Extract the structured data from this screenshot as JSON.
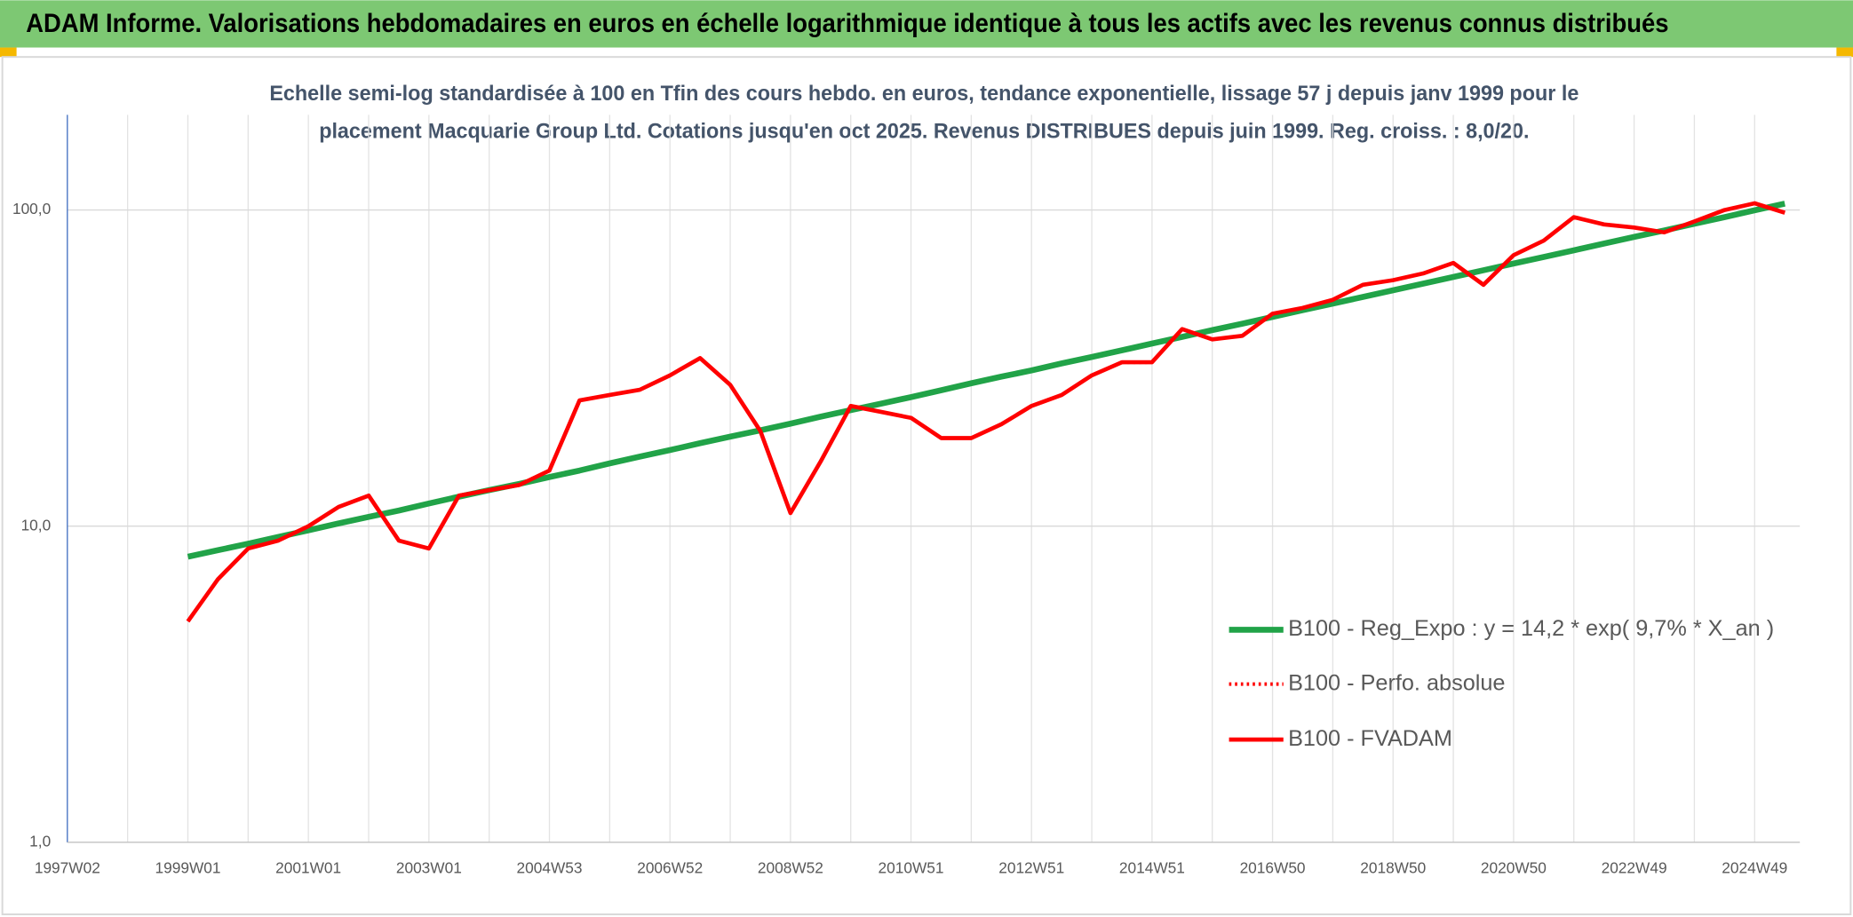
{
  "chart_data": {
    "type": "line",
    "title": "ADAM Informe. Valorisations hebdomadaires en euros en échelle logarithmique identique à tous les actifs avec les revenus connus distribués",
    "subtitle": [
      "Echelle semi-log standardisée à 100 en Tfin des cours hebdo. en euros, tendance exponentielle, lissage 57 j depuis janv 1999 pour le",
      "placement Macquarie Group Ltd. Cotations jusqu'en oct 2025. Revenus DISTRIBUES depuis juin 1999. Reg. croiss. : 8,0/20."
    ],
    "categories": [
      "1997W02",
      null,
      null,
      null,
      "1999W01",
      null,
      null,
      null,
      "2001W01",
      null,
      null,
      null,
      "2003W01",
      null,
      null,
      null,
      "2004W53",
      null,
      null,
      null,
      "2006W52",
      null,
      null,
      null,
      "2008W52",
      null,
      null,
      null,
      "2010W51",
      null,
      null,
      null,
      "2012W51",
      null,
      null,
      null,
      "2014W51",
      null,
      null,
      null,
      "2016W50",
      null,
      null,
      null,
      "2018W50",
      null,
      null,
      null,
      "2020W50",
      null,
      null,
      null,
      "2022W49",
      null,
      null,
      null,
      "2024W49",
      null
    ],
    "log_scale": true,
    "ylim": [
      1,
      200
    ],
    "yticks": [
      {
        "value": 1,
        "label": "1,0"
      },
      {
        "value": 10,
        "label": "10,0"
      },
      {
        "value": 100,
        "label": "100,0"
      }
    ],
    "grid": true,
    "legend": "right",
    "series": [
      {
        "name": "B100 - Reg_Expo : y = 14,2 * exp( 9,7% *  X_an )",
        "color": "#21a348",
        "style": "solid",
        "values": [
          null,
          null,
          null,
          null,
          8.0,
          8.4,
          8.8,
          9.25,
          9.7,
          10.2,
          10.7,
          11.2,
          11.8,
          12.4,
          13.0,
          13.6,
          14.3,
          15.0,
          15.8,
          16.6,
          17.4,
          18.3,
          19.2,
          20.1,
          21.1,
          22.2,
          23.3,
          24.4,
          25.6,
          26.9,
          28.3,
          29.7,
          31.1,
          32.7,
          34.3,
          36.0,
          37.8,
          39.7,
          41.7,
          43.7,
          45.9,
          48.2,
          50.6,
          53.1,
          55.7,
          58.5,
          61.4,
          64.5,
          67.7,
          71.0,
          74.6,
          78.3,
          82.2,
          86.2,
          90.5,
          95.0,
          99.8,
          104.7
        ]
      },
      {
        "name": "B100 - Perfo. absolue",
        "color": "#ff0000",
        "style": "dotted",
        "values": [
          null,
          null,
          null,
          null,
          5.0,
          6.8,
          8.5,
          9.0,
          10.0,
          11.5,
          12.5,
          9.0,
          8.5,
          12.5,
          13.0,
          13.5,
          15.0,
          25.0,
          26.0,
          27.0,
          30.0,
          34.0,
          28.0,
          20.0,
          11.0,
          16.0,
          24.0,
          23.0,
          22.0,
          19.0,
          19.0,
          21.0,
          24.0,
          26.0,
          30.0,
          33.0,
          33.0,
          42.0,
          39.0,
          40.0,
          47.0,
          49.0,
          52.0,
          58.0,
          60.0,
          63.0,
          68.0,
          58.0,
          72.0,
          80.0,
          95.0,
          90.0,
          88.0,
          85.0,
          92.0,
          100.0,
          105.0,
          98.0
        ]
      },
      {
        "name": "B100 - FVADAM",
        "color": "#ff0000",
        "style": "solid",
        "values": [
          null,
          null,
          null,
          null,
          5.0,
          6.8,
          8.5,
          9.0,
          10.0,
          11.5,
          12.5,
          9.0,
          8.5,
          12.5,
          13.0,
          13.5,
          15.0,
          25.0,
          26.0,
          27.0,
          30.0,
          34.0,
          28.0,
          20.0,
          11.0,
          16.0,
          24.0,
          23.0,
          22.0,
          19.0,
          19.0,
          21.0,
          24.0,
          26.0,
          30.0,
          33.0,
          33.0,
          42.0,
          39.0,
          40.0,
          47.0,
          49.0,
          52.0,
          58.0,
          60.0,
          63.0,
          68.0,
          58.0,
          72.0,
          80.0,
          95.0,
          90.0,
          88.0,
          85.0,
          92.0,
          100.0,
          105.0,
          98.0
        ]
      }
    ]
  }
}
